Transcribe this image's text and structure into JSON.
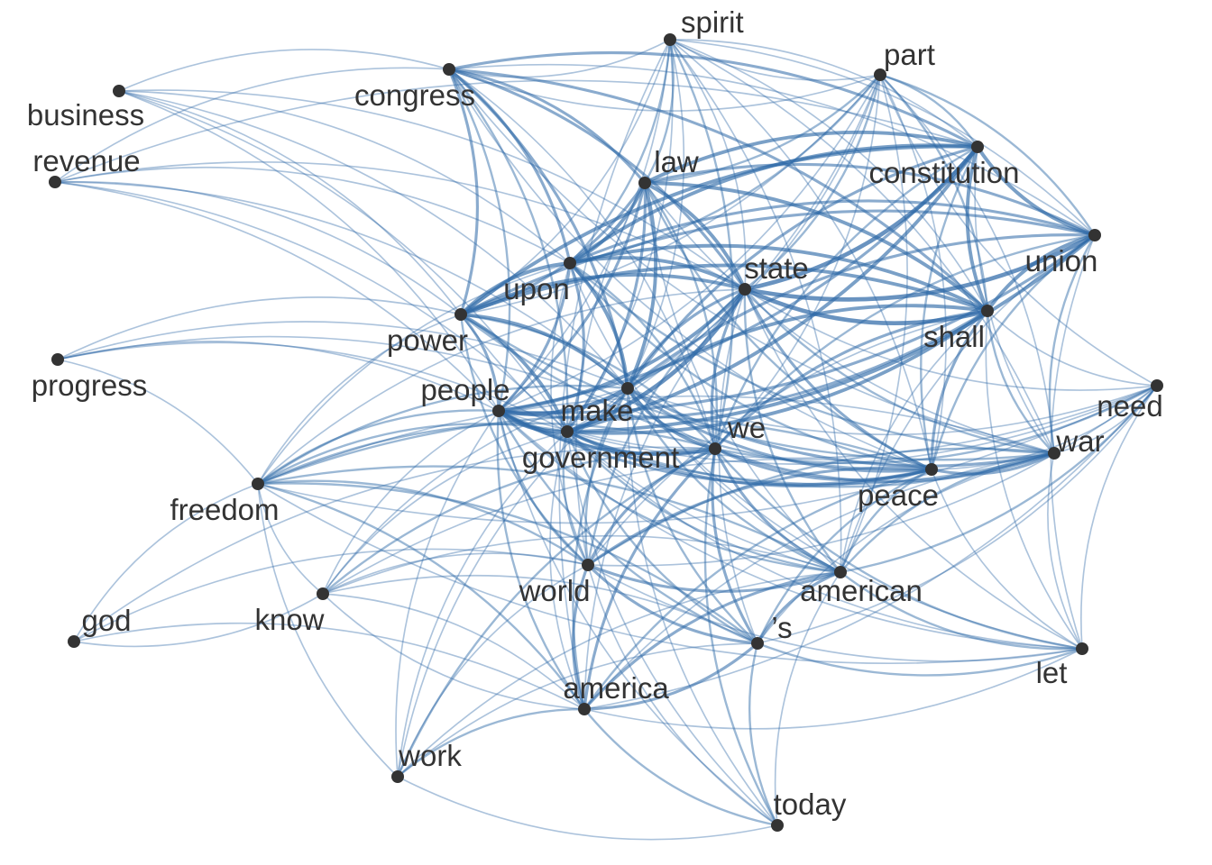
{
  "nodes": [
    {
      "id": "spirit",
      "label": "spirit"
    },
    {
      "id": "part",
      "label": "part"
    },
    {
      "id": "congress",
      "label": "congress"
    },
    {
      "id": "business",
      "label": "business"
    },
    {
      "id": "revenue",
      "label": "revenue"
    },
    {
      "id": "law",
      "label": "law"
    },
    {
      "id": "constitution",
      "label": "constitution"
    },
    {
      "id": "union",
      "label": "union"
    },
    {
      "id": "state",
      "label": "state"
    },
    {
      "id": "upon",
      "label": "upon"
    },
    {
      "id": "shall",
      "label": "shall"
    },
    {
      "id": "power",
      "label": "power"
    },
    {
      "id": "progress",
      "label": "progress"
    },
    {
      "id": "need",
      "label": "need"
    },
    {
      "id": "people",
      "label": "people"
    },
    {
      "id": "make",
      "label": "make"
    },
    {
      "id": "we",
      "label": "we"
    },
    {
      "id": "war",
      "label": "war"
    },
    {
      "id": "government",
      "label": "government"
    },
    {
      "id": "peace",
      "label": "peace"
    },
    {
      "id": "freedom",
      "label": "freedom"
    },
    {
      "id": "world",
      "label": "world"
    },
    {
      "id": "american",
      "label": "american"
    },
    {
      "id": "god",
      "label": "god"
    },
    {
      "id": "know",
      "label": "know"
    },
    {
      "id": "s",
      "label": "’s"
    },
    {
      "id": "let",
      "label": "let"
    },
    {
      "id": "america",
      "label": "america"
    },
    {
      "id": "work",
      "label": "work"
    },
    {
      "id": "today",
      "label": "today"
    }
  ],
  "edges": [
    [
      "people",
      "make",
      5
    ],
    [
      "people",
      "government",
      5
    ],
    [
      "people",
      "state",
      4
    ],
    [
      "people",
      "we",
      4
    ],
    [
      "people",
      "power",
      3
    ],
    [
      "people",
      "upon",
      3
    ],
    [
      "people",
      "law",
      3
    ],
    [
      "people",
      "constitution",
      3
    ],
    [
      "people",
      "union",
      3
    ],
    [
      "people",
      "shall",
      3
    ],
    [
      "people",
      "peace",
      3
    ],
    [
      "people",
      "world",
      2
    ],
    [
      "people",
      "american",
      2
    ],
    [
      "people",
      "congress",
      2
    ],
    [
      "people",
      "freedom",
      2
    ],
    [
      "people",
      "war",
      2
    ],
    [
      "people",
      "america",
      2
    ],
    [
      "people",
      "s",
      2
    ],
    [
      "people",
      "spirit",
      1
    ],
    [
      "people",
      "part",
      1
    ],
    [
      "people",
      "business",
      1
    ],
    [
      "people",
      "revenue",
      1
    ],
    [
      "people",
      "progress",
      1
    ],
    [
      "people",
      "need",
      1
    ],
    [
      "people",
      "know",
      1
    ],
    [
      "people",
      "let",
      1
    ],
    [
      "people",
      "work",
      1
    ],
    [
      "people",
      "today",
      1
    ],
    [
      "government",
      "state",
      5
    ],
    [
      "government",
      "constitution",
      4
    ],
    [
      "government",
      "shall",
      4
    ],
    [
      "government",
      "union",
      4
    ],
    [
      "government",
      "power",
      4
    ],
    [
      "government",
      "upon",
      3
    ],
    [
      "government",
      "law",
      3
    ],
    [
      "government",
      "make",
      3
    ],
    [
      "government",
      "we",
      3
    ],
    [
      "government",
      "peace",
      3
    ],
    [
      "government",
      "war",
      2
    ],
    [
      "government",
      "congress",
      2
    ],
    [
      "government",
      "world",
      2
    ],
    [
      "government",
      "american",
      2
    ],
    [
      "government",
      "freedom",
      2
    ],
    [
      "government",
      "s",
      2
    ],
    [
      "government",
      "america",
      1
    ],
    [
      "government",
      "part",
      1
    ],
    [
      "government",
      "spirit",
      1
    ],
    [
      "government",
      "business",
      1
    ],
    [
      "government",
      "revenue",
      1
    ],
    [
      "government",
      "progress",
      1
    ],
    [
      "government",
      "need",
      1
    ],
    [
      "government",
      "know",
      1
    ],
    [
      "government",
      "let",
      1
    ],
    [
      "government",
      "work",
      1
    ],
    [
      "government",
      "today",
      1
    ],
    [
      "state",
      "constitution",
      5
    ],
    [
      "state",
      "union",
      5
    ],
    [
      "state",
      "shall",
      5
    ],
    [
      "state",
      "law",
      4
    ],
    [
      "state",
      "upon",
      4
    ],
    [
      "state",
      "power",
      4
    ],
    [
      "state",
      "congress",
      3
    ],
    [
      "state",
      "make",
      3
    ],
    [
      "state",
      "we",
      3
    ],
    [
      "state",
      "peace",
      3
    ],
    [
      "state",
      "war",
      2
    ],
    [
      "state",
      "part",
      2
    ],
    [
      "state",
      "american",
      2
    ],
    [
      "state",
      "world",
      2
    ],
    [
      "state",
      "spirit",
      1
    ],
    [
      "state",
      "s",
      1
    ],
    [
      "state",
      "america",
      1
    ],
    [
      "state",
      "business",
      1
    ],
    [
      "state",
      "revenue",
      1
    ],
    [
      "state",
      "freedom",
      1
    ],
    [
      "state",
      "need",
      1
    ],
    [
      "state",
      "let",
      1
    ],
    [
      "constitution",
      "union",
      4
    ],
    [
      "constitution",
      "shall",
      4
    ],
    [
      "constitution",
      "law",
      4
    ],
    [
      "constitution",
      "upon",
      4
    ],
    [
      "constitution",
      "power",
      4
    ],
    [
      "constitution",
      "congress",
      3
    ],
    [
      "constitution",
      "make",
      3
    ],
    [
      "constitution",
      "we",
      2
    ],
    [
      "constitution",
      "part",
      2
    ],
    [
      "constitution",
      "peace",
      2
    ],
    [
      "constitution",
      "war",
      1
    ],
    [
      "constitution",
      "revenue",
      1
    ],
    [
      "constitution",
      "spirit",
      1
    ],
    [
      "union",
      "shall",
      4
    ],
    [
      "union",
      "upon",
      3
    ],
    [
      "union",
      "power",
      3
    ],
    [
      "union",
      "law",
      3
    ],
    [
      "union",
      "make",
      3
    ],
    [
      "union",
      "we",
      2
    ],
    [
      "union",
      "peace",
      2
    ],
    [
      "union",
      "war",
      2
    ],
    [
      "union",
      "part",
      2
    ],
    [
      "union",
      "congress",
      1
    ],
    [
      "union",
      "spirit",
      1
    ],
    [
      "union",
      "american",
      1
    ],
    [
      "union",
      "let",
      1
    ],
    [
      "shall",
      "law",
      4
    ],
    [
      "shall",
      "upon",
      4
    ],
    [
      "shall",
      "power",
      4
    ],
    [
      "shall",
      "make",
      4
    ],
    [
      "shall",
      "congress",
      3
    ],
    [
      "shall",
      "we",
      3
    ],
    [
      "shall",
      "peace",
      3
    ],
    [
      "shall",
      "war",
      2
    ],
    [
      "shall",
      "part",
      2
    ],
    [
      "shall",
      "american",
      1
    ],
    [
      "shall",
      "world",
      1
    ],
    [
      "shall",
      "let",
      1
    ],
    [
      "shall",
      "spirit",
      1
    ],
    [
      "shall",
      "need",
      1
    ],
    [
      "make",
      "we",
      4
    ],
    [
      "make",
      "law",
      4
    ],
    [
      "make",
      "upon",
      4
    ],
    [
      "make",
      "power",
      4
    ],
    [
      "make",
      "congress",
      3
    ],
    [
      "make",
      "peace",
      3
    ],
    [
      "make",
      "war",
      3
    ],
    [
      "make",
      "world",
      2
    ],
    [
      "make",
      "american",
      2
    ],
    [
      "make",
      "freedom",
      2
    ],
    [
      "make",
      "america",
      2
    ],
    [
      "make",
      "s",
      2
    ],
    [
      "make",
      "spirit",
      1
    ],
    [
      "make",
      "part",
      1
    ],
    [
      "make",
      "business",
      1
    ],
    [
      "make",
      "revenue",
      1
    ],
    [
      "make",
      "progress",
      1
    ],
    [
      "make",
      "need",
      1
    ],
    [
      "make",
      "know",
      1
    ],
    [
      "make",
      "let",
      1
    ],
    [
      "make",
      "work",
      1
    ],
    [
      "make",
      "today",
      1
    ],
    [
      "we",
      "peace",
      3
    ],
    [
      "we",
      "war",
      3
    ],
    [
      "we",
      "world",
      3
    ],
    [
      "we",
      "american",
      3
    ],
    [
      "we",
      "america",
      3
    ],
    [
      "we",
      "s",
      3
    ],
    [
      "we",
      "freedom",
      2
    ],
    [
      "we",
      "need",
      2
    ],
    [
      "we",
      "know",
      2
    ],
    [
      "we",
      "let",
      2
    ],
    [
      "we",
      "work",
      2
    ],
    [
      "we",
      "today",
      2
    ],
    [
      "we",
      "spirit",
      2
    ],
    [
      "we",
      "law",
      2
    ],
    [
      "we",
      "upon",
      2
    ],
    [
      "we",
      "power",
      2
    ],
    [
      "we",
      "part",
      1
    ],
    [
      "we",
      "god",
      1
    ],
    [
      "we",
      "progress",
      1
    ],
    [
      "we",
      "congress",
      1
    ],
    [
      "upon",
      "law",
      4
    ],
    [
      "upon",
      "power",
      4
    ],
    [
      "upon",
      "congress",
      3
    ],
    [
      "upon",
      "spirit",
      2
    ],
    [
      "upon",
      "part",
      2
    ],
    [
      "upon",
      "peace",
      2
    ],
    [
      "upon",
      "war",
      2
    ],
    [
      "upon",
      "world",
      1
    ],
    [
      "upon",
      "american",
      1
    ],
    [
      "upon",
      "revenue",
      1
    ],
    [
      "upon",
      "business",
      1
    ],
    [
      "upon",
      "freedom",
      1
    ],
    [
      "power",
      "law",
      3
    ],
    [
      "power",
      "congress",
      3
    ],
    [
      "power",
      "peace",
      2
    ],
    [
      "power",
      "war",
      2
    ],
    [
      "power",
      "world",
      2
    ],
    [
      "power",
      "revenue",
      1
    ],
    [
      "power",
      "business",
      1
    ],
    [
      "power",
      "progress",
      1
    ],
    [
      "power",
      "freedom",
      1
    ],
    [
      "power",
      "part",
      1
    ],
    [
      "power",
      "spirit",
      1
    ],
    [
      "power",
      "american",
      1
    ],
    [
      "law",
      "congress",
      3
    ],
    [
      "law",
      "spirit",
      2
    ],
    [
      "law",
      "part",
      2
    ],
    [
      "law",
      "peace",
      2
    ],
    [
      "law",
      "war",
      1
    ],
    [
      "law",
      "american",
      1
    ],
    [
      "law",
      "world",
      1
    ],
    [
      "congress",
      "business",
      1
    ],
    [
      "congress",
      "revenue",
      1
    ],
    [
      "congress",
      "spirit",
      1
    ],
    [
      "congress",
      "part",
      1
    ],
    [
      "congress",
      "peace",
      1
    ],
    [
      "congress",
      "war",
      1
    ],
    [
      "peace",
      "war",
      3
    ],
    [
      "peace",
      "world",
      3
    ],
    [
      "peace",
      "american",
      2
    ],
    [
      "peace",
      "spirit",
      1
    ],
    [
      "peace",
      "part",
      1
    ],
    [
      "peace",
      "need",
      1
    ],
    [
      "peace",
      "freedom",
      2
    ],
    [
      "peace",
      "america",
      2
    ],
    [
      "peace",
      "s",
      2
    ],
    [
      "peace",
      "let",
      1
    ],
    [
      "peace",
      "know",
      1
    ],
    [
      "war",
      "world",
      2
    ],
    [
      "war",
      "american",
      2
    ],
    [
      "war",
      "spirit",
      1
    ],
    [
      "war",
      "part",
      1
    ],
    [
      "war",
      "need",
      1
    ],
    [
      "war",
      "freedom",
      1
    ],
    [
      "war",
      "america",
      1
    ],
    [
      "war",
      "s",
      1
    ],
    [
      "war",
      "let",
      1
    ],
    [
      "world",
      "american",
      3
    ],
    [
      "world",
      "america",
      3
    ],
    [
      "world",
      "s",
      3
    ],
    [
      "world",
      "freedom",
      2
    ],
    [
      "world",
      "need",
      1
    ],
    [
      "world",
      "know",
      1
    ],
    [
      "world",
      "let",
      1
    ],
    [
      "world",
      "work",
      1
    ],
    [
      "world",
      "today",
      1
    ],
    [
      "world",
      "god",
      1
    ],
    [
      "american",
      "america",
      3
    ],
    [
      "american",
      "s",
      3
    ],
    [
      "american",
      "freedom",
      2
    ],
    [
      "american",
      "need",
      2
    ],
    [
      "american",
      "know",
      1
    ],
    [
      "american",
      "let",
      2
    ],
    [
      "american",
      "work",
      1
    ],
    [
      "american",
      "today",
      1
    ],
    [
      "american",
      "spirit",
      1
    ],
    [
      "american",
      "part",
      1
    ],
    [
      "america",
      "s",
      3
    ],
    [
      "america",
      "freedom",
      2
    ],
    [
      "america",
      "need",
      1
    ],
    [
      "america",
      "know",
      1
    ],
    [
      "america",
      "let",
      1
    ],
    [
      "america",
      "work",
      2
    ],
    [
      "america",
      "today",
      2
    ],
    [
      "america",
      "god",
      1
    ],
    [
      "s",
      "freedom",
      2
    ],
    [
      "s",
      "need",
      1
    ],
    [
      "s",
      "know",
      1
    ],
    [
      "s",
      "let",
      2
    ],
    [
      "s",
      "work",
      1
    ],
    [
      "s",
      "today",
      2
    ],
    [
      "freedom",
      "god",
      1
    ],
    [
      "freedom",
      "know",
      1
    ],
    [
      "freedom",
      "work",
      1
    ],
    [
      "freedom",
      "progress",
      1
    ],
    [
      "freedom",
      "let",
      1
    ],
    [
      "freedom",
      "need",
      1
    ],
    [
      "spirit",
      "part",
      1
    ],
    [
      "part",
      "need",
      1
    ],
    [
      "need",
      "let",
      1
    ],
    [
      "god",
      "know",
      1
    ],
    [
      "know",
      "america",
      1
    ],
    [
      "work",
      "today",
      1
    ],
    [
      "spirit",
      "america",
      1
    ]
  ]
}
